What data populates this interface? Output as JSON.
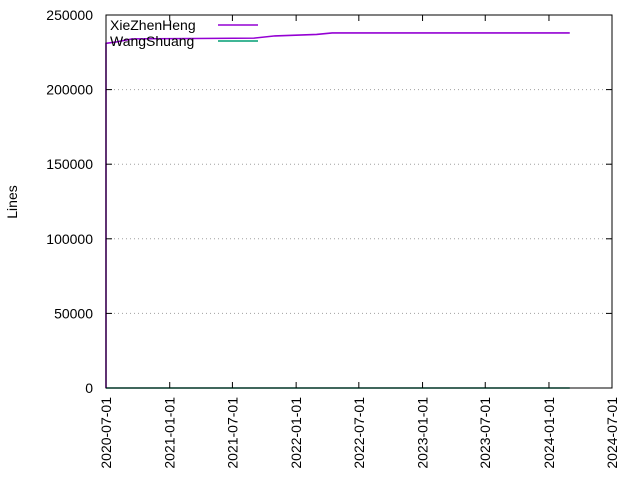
{
  "chart_data": {
    "type": "line",
    "ylabel": "Lines",
    "xlabel": "",
    "x_axis_type": "date",
    "xlim": [
      "2020-07-01",
      "2024-07-01"
    ],
    "ylim": [
      0,
      250000
    ],
    "x_ticks": [
      "2020-07-01",
      "2021-01-01",
      "2021-07-01",
      "2022-01-01",
      "2022-07-01",
      "2023-01-01",
      "2023-07-01",
      "2024-01-01",
      "2024-07-01"
    ],
    "y_ticks": [
      0,
      50000,
      100000,
      150000,
      200000,
      250000
    ],
    "y_tick_labels": [
      "0",
      "50000",
      "100000",
      "150000",
      "200000",
      "250000"
    ],
    "grid": "horizontal dotted",
    "legend_position": "top-left",
    "series": [
      {
        "name": "XieZhenHeng",
        "color": "#9400d3",
        "points": [
          [
            "2020-07-01",
            0
          ],
          [
            "2020-07-01",
            231000
          ],
          [
            "2020-08-01",
            232000
          ],
          [
            "2020-09-15",
            234000
          ],
          [
            "2021-09-01",
            234500
          ],
          [
            "2021-11-01",
            236000
          ],
          [
            "2022-03-01",
            237000
          ],
          [
            "2022-04-15",
            238000
          ],
          [
            "2024-03-01",
            238000
          ]
        ]
      },
      {
        "name": "WangShuang",
        "color": "#009e73",
        "points": [
          [
            "2020-07-01",
            0
          ],
          [
            "2024-03-01",
            0
          ]
        ]
      }
    ]
  }
}
